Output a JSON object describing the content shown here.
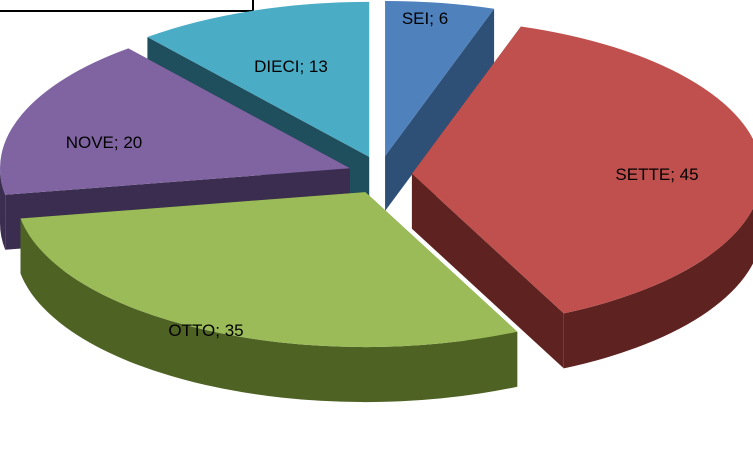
{
  "chart_data": {
    "type": "pie",
    "style": "3d-exploded",
    "title": "",
    "categories": [
      "SEI",
      "SETTE",
      "OTTO",
      "NOVE",
      "DIECI"
    ],
    "values": [
      6,
      45,
      35,
      20,
      13
    ],
    "labels": [
      "SEI; 6",
      "SETTE; 45",
      "OTTO; 35",
      "NOVE; 20",
      "DIECI; 13"
    ],
    "colors": [
      "#4F81BD",
      "#C0504D",
      "#9BBB59",
      "#8064A2",
      "#4BACC6"
    ],
    "side_colors": [
      "#2E5077",
      "#5E2220",
      "#4E6223",
      "#3B2D4F",
      "#1F4E5C"
    ]
  }
}
